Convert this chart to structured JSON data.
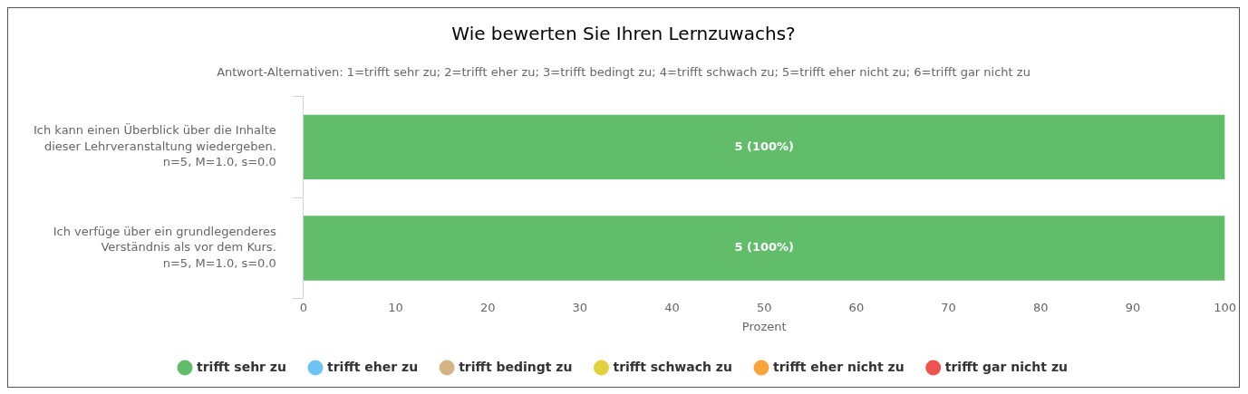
{
  "chart_data": {
    "type": "bar",
    "orientation": "horizontal",
    "stacked": true,
    "title": "Wie bewerten Sie Ihren Lernzuwachs?",
    "subtitle": "Antwort-Alternativen: 1=trifft sehr zu; 2=trifft eher zu; 3=trifft bedingt zu; 4=trifft schwach zu; 5=trifft eher nicht zu; 6=trifft gar nicht zu",
    "xlabel": "Prozent",
    "categories": [
      "Ich kann einen Überblick über die Inhalte dieser Lehrveranstaltung wiedergeben.\nn=5, M=1.0, s=0.0",
      "Ich verfüge über ein grundlegenderes Verständnis als vor dem Kurs.\nn=5, M=1.0, s=0.0"
    ],
    "series": [
      {
        "name": "trifft sehr zu",
        "color": "#61bd6a",
        "values": [
          100,
          100
        ],
        "value_labels": [
          "5 (100%)",
          "5 (100%)"
        ]
      },
      {
        "name": "trifft eher zu",
        "color": "#6ec3f2",
        "values": [
          0,
          0
        ]
      },
      {
        "name": "trifft bedingt zu",
        "color": "#d4b483",
        "values": [
          0,
          0
        ]
      },
      {
        "name": "trifft schwach zu",
        "color": "#e0d23e",
        "values": [
          0,
          0
        ]
      },
      {
        "name": "trifft eher nicht zu",
        "color": "#f7a53a",
        "values": [
          0,
          0
        ]
      },
      {
        "name": "trifft gar nicht zu",
        "color": "#ef5350",
        "values": [
          0,
          0
        ]
      }
    ],
    "xlim": [
      0,
      100
    ],
    "xticks": [
      0,
      10,
      20,
      30,
      40,
      50,
      60,
      70,
      80,
      90,
      100
    ],
    "grid": false,
    "legend": "bottom"
  }
}
